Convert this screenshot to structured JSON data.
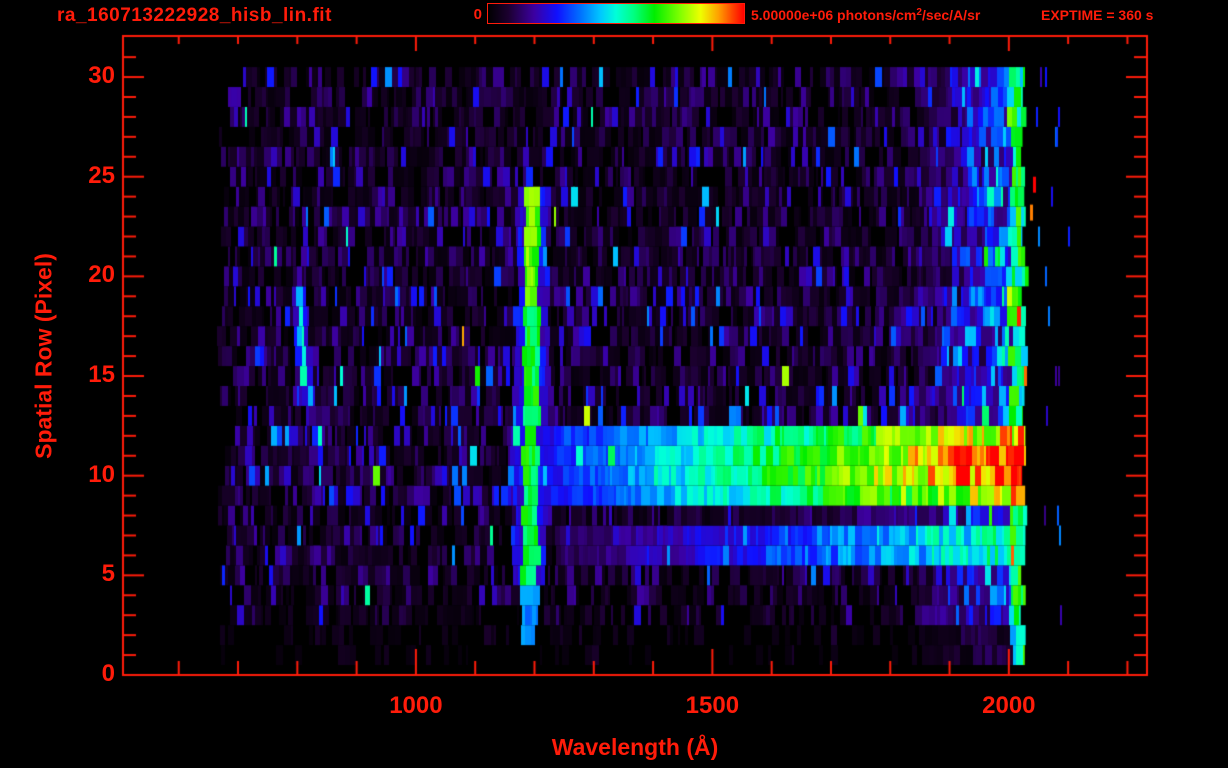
{
  "colors": {
    "accent": "#ff1c0a",
    "background": "#000000"
  },
  "header": {
    "title": "ra_160713222928_hisb_lin.fit",
    "colorbar_min_label": "0",
    "colorbar_max_label_prefix": "5.00000e+06 photons/cm",
    "colorbar_max_label_sup": "2",
    "colorbar_max_label_suffix": "/sec/A/sr",
    "exptime_label": "EXPTIME = 360 s"
  },
  "chart_data": {
    "type": "heatmap",
    "title": "ra_160713222928_hisb_lin.fit",
    "xlabel": "Wavelength (Å)",
    "ylabel": "Spatial Row (Pixel)",
    "xlim": [
      506,
      2233
    ],
    "ylim": [
      0,
      32.06
    ],
    "x_major_ticks": [
      1000,
      1500,
      2000
    ],
    "x_major_tick_labels": [
      "1000",
      "1500",
      "2000"
    ],
    "x_minor_tick_step": 100,
    "y_major_ticks": [
      0,
      5,
      10,
      15,
      20,
      25,
      30
    ],
    "y_major_tick_labels": [
      "0",
      "5",
      "10",
      "15",
      "20",
      "25",
      "30"
    ],
    "y_minor_tick_step": 1,
    "grid": false,
    "legend": "colorbar-top-center",
    "colorbar": {
      "min": 0,
      "max": 5000000,
      "max_label": "5.00000e+06",
      "units": "photons/cm^2/sec/A/sr"
    },
    "exposure_time_s": 360,
    "colormap_stops": [
      [
        0.0,
        "#000000"
      ],
      [
        0.08,
        "#1c0030"
      ],
      [
        0.18,
        "#3c00a0"
      ],
      [
        0.27,
        "#1010ff"
      ],
      [
        0.36,
        "#0070ff"
      ],
      [
        0.44,
        "#00c8ff"
      ],
      [
        0.5,
        "#00ffd8"
      ],
      [
        0.57,
        "#00ff80"
      ],
      [
        0.65,
        "#00ee00"
      ],
      [
        0.75,
        "#80ff00"
      ],
      [
        0.83,
        "#eeff00"
      ],
      [
        0.9,
        "#ffa000"
      ],
      [
        0.96,
        "#ff3c00"
      ],
      [
        1.0,
        "#ff0000"
      ]
    ],
    "data_extent": {
      "wavelength_A": [
        664,
        2034
      ],
      "rows": [
        1,
        30
      ]
    },
    "background_noise": {
      "row_base_levels": [
        0.012,
        0.02,
        0.045,
        0.06,
        0.07,
        0.075,
        0.075,
        0.07,
        0.1,
        0.11,
        0.1,
        0.1,
        0.125,
        0.085,
        0.085,
        0.09,
        0.085,
        0.09,
        0.085,
        0.075,
        0.08,
        0.075,
        0.08,
        0.075,
        0.065,
        0.07,
        0.065,
        0.07,
        0.065,
        0.08
      ],
      "right_brightening": {
        "start_A": 1830,
        "full_A": 2034,
        "boost": 0.42
      }
    },
    "features": [
      {
        "name": "lyman-alpha-emission-line",
        "center_A_base": 1191,
        "drift_A_per_row": 0.25,
        "half_width_A": 13,
        "halo_half_width_A": 27,
        "row_range": [
          4.4,
          24.2
        ],
        "faint_row_range": [
          1.5,
          4.4
        ],
        "intensity": 0.55,
        "top_boost_row_min": 18.5,
        "top_boost": 0.1
      },
      {
        "name": "faint-curved-emission-line",
        "row_range": [
          13.4,
          19.5
        ],
        "center_A": 804,
        "center_A_at_row": 18.5,
        "quad_A_per_row2": 0.9,
        "half_width_A": 5,
        "intensity": 0.4
      },
      {
        "name": "primary-spectrum-band",
        "row_range": [
          8.8,
          12.65
        ],
        "hot_row_range": [
          9.6,
          11.8
        ],
        "start_A": 1155,
        "end_A": 2034,
        "intensity_at_start": 0.18,
        "intensity_at_end": 0.88,
        "hot_end_boost": 0.12
      },
      {
        "name": "secondary-spectrum-band",
        "row_range": [
          5.65,
          7.35
        ],
        "start_A": 1235,
        "end_A": 2034,
        "intensity_at_start": 0.1,
        "intensity_at_end": 0.55
      },
      {
        "name": "inter-band-glow",
        "row_range": [
          7.35,
          8.8
        ],
        "start_A": 1400,
        "end_A": 2034,
        "intensity_at_end": 0.22
      },
      {
        "name": "detector-edge-bright-column",
        "start_A": 2004,
        "end_A": 2034,
        "boost": 0.42,
        "red_spike_prob": 0.05
      },
      {
        "name": "stray-columns-beyond-edge",
        "wavelength_range_A": [
          2040,
          2100
        ],
        "per_row_prob": 0.5,
        "intensity": 0.25
      }
    ],
    "hot_strays": [
      {
        "wavelength_A": 2041,
        "row": 24.6,
        "intensity": 1.0
      },
      {
        "wavelength_A": 2036,
        "row": 23.2,
        "intensity": 0.92
      }
    ]
  }
}
